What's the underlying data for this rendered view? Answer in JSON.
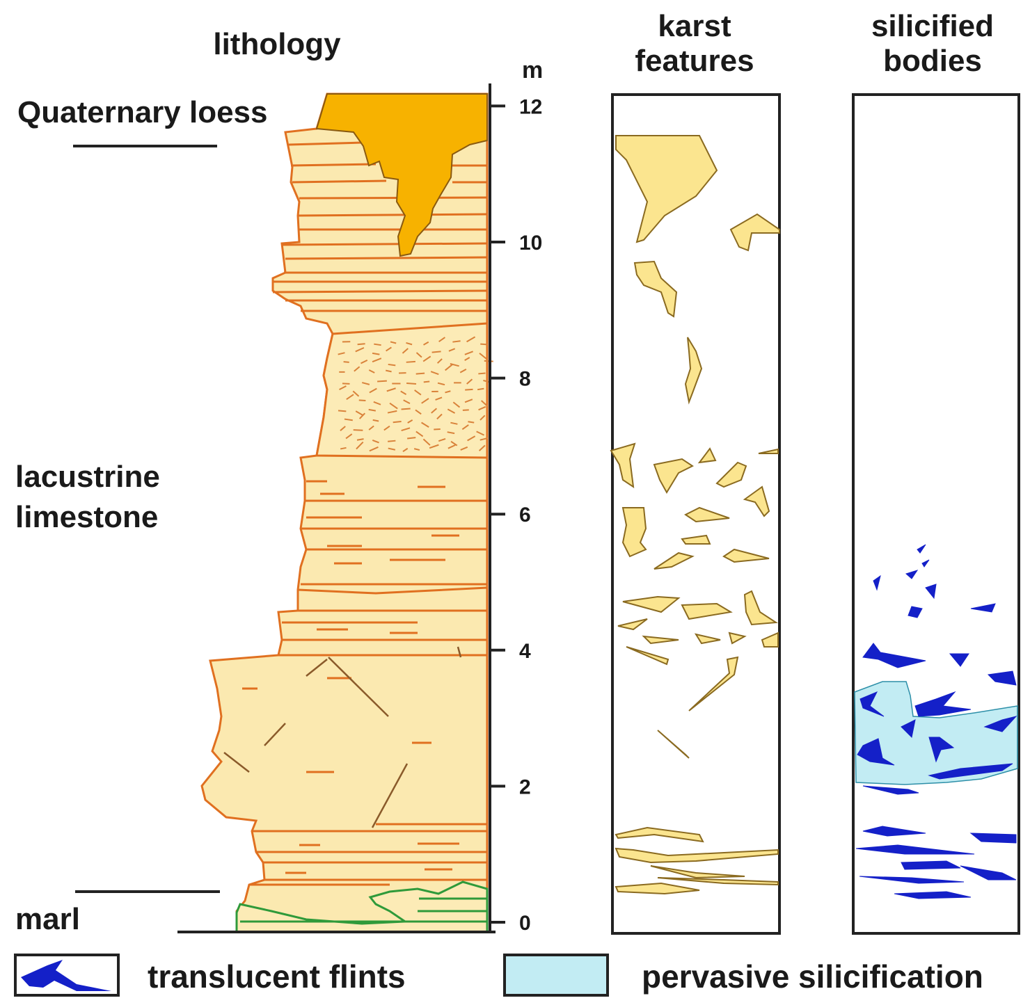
{
  "headers": {
    "lithology": "lithology",
    "karst": [
      "karst",
      "features"
    ],
    "silicified": [
      "silicified",
      "bodies"
    ]
  },
  "scale": {
    "unit": "m",
    "ticks": [
      "0",
      "2",
      "4",
      "6",
      "8",
      "10",
      "12"
    ]
  },
  "units": {
    "loess": "Quaternary loess",
    "limestone": [
      "lacustrine",
      "limestone"
    ],
    "marl": "marl"
  },
  "legend": {
    "flints": "translucent flints",
    "pervasive": "pervasive silicification"
  },
  "colors": {
    "limestone_fill": "#fbe9b0",
    "loess_fill": "#f7b200",
    "bed_line": "#e07020",
    "marl_line": "#2f9a3a",
    "flint": "#1420c8",
    "silicification": "#c2ecf3",
    "karst_fill": "#fbe58f",
    "karst_stroke": "#8a6a20",
    "axis": "#222222"
  }
}
